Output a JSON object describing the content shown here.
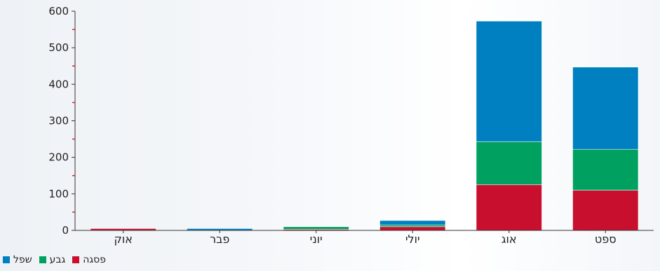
{
  "chart_data": {
    "type": "bar",
    "stacked": true,
    "categories": [
      "אוק",
      "פבר",
      "יוני",
      "יולי",
      "אוג",
      "ספט"
    ],
    "series": [
      {
        "name": "פסגה",
        "color": "#c8102e",
        "values": [
          5,
          0,
          3,
          10,
          125,
          110
        ]
      },
      {
        "name": "גבע",
        "color": "#00a060",
        "values": [
          0,
          0,
          7,
          5,
          118,
          112
        ]
      },
      {
        "name": "שפל",
        "color": "#0080c0",
        "values": [
          0,
          5,
          0,
          12,
          330,
          225
        ]
      }
    ],
    "yticks": [
      0,
      100,
      200,
      300,
      400,
      500,
      600
    ],
    "ylim": [
      0,
      600
    ],
    "grid": false,
    "legend_position": "bottom-left"
  }
}
